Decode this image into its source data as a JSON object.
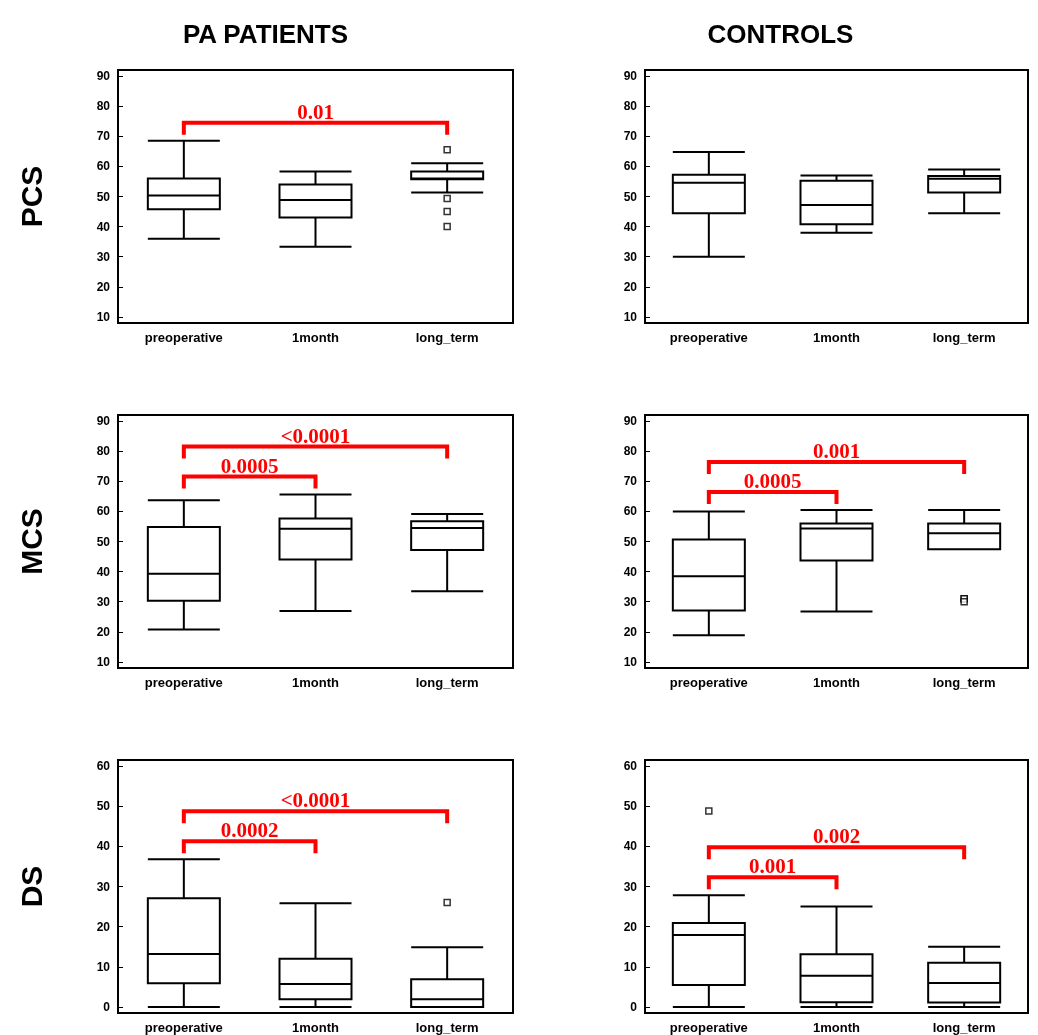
{
  "chart_data": [
    {
      "type": "box",
      "title": "PA PATIENTS",
      "ylabel": "PCS",
      "categories": [
        "preoperative",
        "1month",
        "long_term"
      ],
      "ylim": [
        8,
        92
      ],
      "yticks": [
        10,
        20,
        30,
        40,
        50,
        60,
        70,
        80,
        90
      ],
      "boxes": [
        {
          "low": 36,
          "q1": 45.8,
          "median": 50.3,
          "q3": 56,
          "high": 68.5
        },
        {
          "low": 33.3,
          "q1": 43,
          "median": 48.8,
          "q3": 54,
          "high": 58.3
        },
        {
          "low": 51.3,
          "q1": 55.7,
          "median": 56,
          "q3": 58.3,
          "high": 61,
          "outliers": [
            65.5,
            49.3,
            45,
            40
          ]
        }
      ],
      "annotations": [
        "0.01"
      ]
    },
    {
      "type": "box",
      "title": "CONTROLS",
      "categories": [
        "preoperative",
        "1month",
        "long_term"
      ],
      "ylim": [
        8,
        92
      ],
      "yticks": [
        10,
        20,
        30,
        40,
        50,
        60,
        70,
        80,
        90
      ],
      "boxes": [
        {
          "low": 30,
          "q1": 44.4,
          "median": 54.6,
          "q3": 57.2,
          "high": 64.8
        },
        {
          "low": 38,
          "q1": 40.8,
          "median": 47.2,
          "q3": 55.2,
          "high": 57
        },
        {
          "low": 44.4,
          "q1": 51.3,
          "median": 55.9,
          "q3": 56.8,
          "high": 59
        }
      ]
    },
    {
      "type": "box",
      "ylabel": "MCS",
      "categories": [
        "preoperative",
        "1month",
        "long_term"
      ],
      "ylim": [
        8,
        92
      ],
      "yticks": [
        10,
        20,
        30,
        40,
        50,
        60,
        70,
        80,
        90
      ],
      "boxes": [
        {
          "low": 20.8,
          "q1": 30.3,
          "median": 39.3,
          "q3": 54.8,
          "high": 63.7
        },
        {
          "low": 26.9,
          "q1": 44,
          "median": 54.2,
          "q3": 57.6,
          "high": 65.6
        },
        {
          "low": 33.5,
          "q1": 47.2,
          "median": 54.5,
          "q3": 56.7,
          "high": 59.1
        }
      ],
      "annotations": [
        "0.0005",
        "<0.0001"
      ]
    },
    {
      "type": "box",
      "categories": [
        "preoperative",
        "1month",
        "long_term"
      ],
      "ylim": [
        8,
        92
      ],
      "yticks": [
        10,
        20,
        30,
        40,
        50,
        60,
        70,
        80,
        90
      ],
      "boxes": [
        {
          "low": 18.9,
          "q1": 27.1,
          "median": 38.5,
          "q3": 50.7,
          "high": 60
        },
        {
          "low": 26.8,
          "q1": 43.7,
          "median": 54.3,
          "q3": 56,
          "high": 60.5
        },
        {
          "low": 47.4,
          "q1": 47.4,
          "median": 52.7,
          "q3": 56,
          "high": 60.5,
          "outliers": [
            31,
            31,
            30
          ]
        }
      ],
      "annotations": [
        "0.0005",
        "0.001"
      ]
    },
    {
      "type": "box",
      "ylabel": "DS",
      "categories": [
        "preoperative",
        "1month",
        "long_term"
      ],
      "ylim": [
        -1.5,
        61.5
      ],
      "yticks": [
        0,
        10,
        20,
        30,
        40,
        50,
        60
      ],
      "boxes": [
        {
          "low": 0,
          "q1": 5.9,
          "median": 13.2,
          "q3": 27.1,
          "high": 36.8
        },
        {
          "low": 0,
          "q1": 1.9,
          "median": 5.7,
          "q3": 12,
          "high": 25.8
        },
        {
          "low": 0,
          "q1": 0,
          "median": 1.9,
          "q3": 6.9,
          "high": 14.9,
          "outliers": [
            26
          ]
        }
      ],
      "annotations": [
        "0.0002",
        "<0.0001"
      ]
    },
    {
      "type": "box",
      "categories": [
        "preoperative",
        "1month",
        "long_term"
      ],
      "ylim": [
        -1.5,
        61.5
      ],
      "yticks": [
        0,
        10,
        20,
        30,
        40,
        50,
        60
      ],
      "boxes": [
        {
          "low": 0,
          "q1": 5.5,
          "median": 17.9,
          "q3": 20.9,
          "high": 27.8,
          "outliers": [
            48.8
          ]
        },
        {
          "low": 0,
          "q1": 1.2,
          "median": 7.8,
          "q3": 13.1,
          "high": 25
        },
        {
          "low": 0,
          "q1": 1.1,
          "median": 6,
          "q3": 11,
          "high": 15
        }
      ],
      "annotations": [
        "0.001",
        "0.002"
      ]
    }
  ]
}
